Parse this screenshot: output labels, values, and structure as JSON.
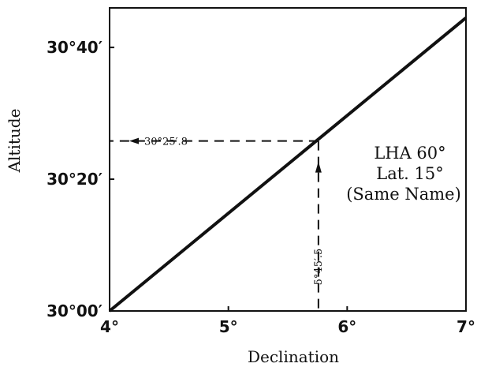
{
  "chart_data": {
    "type": "line",
    "title": "",
    "xlabel": "Declination",
    "ylabel": "Altitude",
    "xlim": [
      4,
      7
    ],
    "ylim_minutes": [
      0,
      46
    ],
    "x_ticks": [
      {
        "value": 4,
        "label": "4°"
      },
      {
        "value": 5,
        "label": "5°"
      },
      {
        "value": 6,
        "label": "6°"
      },
      {
        "value": 7,
        "label": "7°"
      }
    ],
    "y_ticks": [
      {
        "value": 0,
        "label": "30°00′"
      },
      {
        "value": 20,
        "label": "30°20′"
      },
      {
        "value": 40,
        "label": "30°40′"
      }
    ],
    "series": [
      {
        "points": [
          {
            "x": 4,
            "y": 0
          },
          {
            "x": 7,
            "y": 44.5
          }
        ]
      }
    ],
    "marked_point": {
      "x": 5.758,
      "y": 25.8
    },
    "vertical_arrow_label": "5°45′.5",
    "horizontal_arrow_label": "30°25′.8",
    "note_lines": [
      "LHA 60°",
      "Lat. 15°",
      "(Same Name)"
    ],
    "grid": false,
    "legend": "none"
  }
}
